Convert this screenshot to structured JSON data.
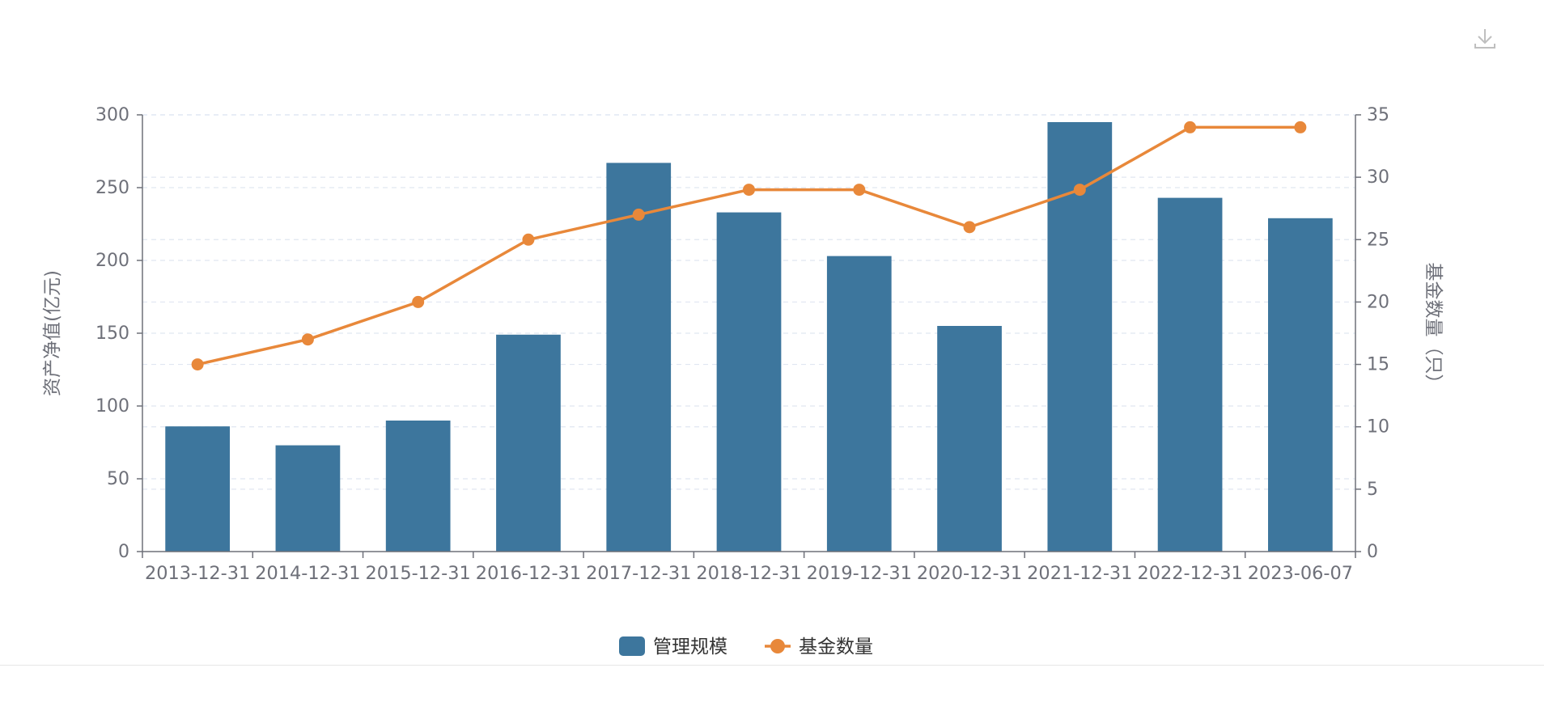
{
  "toolbar": {
    "download_icon": "download-icon"
  },
  "chart_data": {
    "type": "bar",
    "categories": [
      "2013-12-31",
      "2014-12-31",
      "2015-12-31",
      "2016-12-31",
      "2017-12-31",
      "2018-12-31",
      "2019-12-31",
      "2020-12-31",
      "2021-12-31",
      "2022-12-31",
      "2023-06-07"
    ],
    "series": [
      {
        "name": "管理规模",
        "type": "bar",
        "axis": "left",
        "color": "#3d769d",
        "values": [
          86,
          73,
          90,
          149,
          267,
          233,
          203,
          155,
          295,
          243,
          229
        ]
      },
      {
        "name": "基金数量",
        "type": "line",
        "axis": "right",
        "color": "#e8883a",
        "values": [
          15,
          17,
          20,
          25,
          27,
          29,
          29,
          26,
          29,
          34,
          34
        ]
      }
    ],
    "ylabel": "资产净值(亿元)",
    "ylabel_right": "基金数量（只）",
    "ylim": [
      0,
      300
    ],
    "yticks": [
      0,
      50,
      100,
      150,
      200,
      250,
      300
    ],
    "ylim_right": [
      0,
      35
    ],
    "yticks_right": [
      0,
      5,
      10,
      15,
      20,
      25,
      30,
      35
    ],
    "grid": true,
    "legend_position": "bottom-center",
    "colors": {
      "axis": "#6e7079",
      "grid": "#e0e6f1",
      "text": "#6e7079",
      "legend_text": "#333333"
    }
  }
}
